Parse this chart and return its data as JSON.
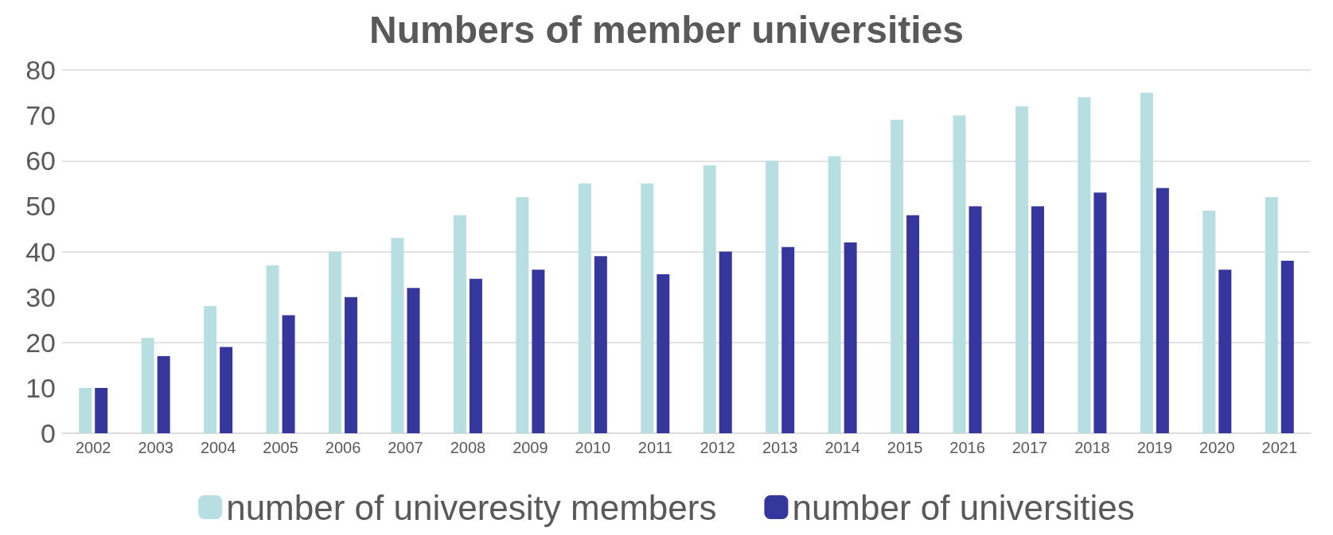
{
  "chart_data": {
    "type": "bar",
    "title": "Numbers of member universities",
    "categories": [
      "2002",
      "2003",
      "2004",
      "2005",
      "2006",
      "2007",
      "2008",
      "2009",
      "2010",
      "2011",
      "2012",
      "2013",
      "2014",
      "2015",
      "2016",
      "2017",
      "2018",
      "2019",
      "2020",
      "2021"
    ],
    "series": [
      {
        "name": "number of univeresity members",
        "color": "#b7dfe2",
        "values": [
          10,
          21,
          28,
          37,
          40,
          43,
          48,
          52,
          55,
          55,
          59,
          60,
          61,
          69,
          70,
          72,
          74,
          75,
          49,
          52
        ]
      },
      {
        "name": "number of universities",
        "color": "#36379c",
        "values": [
          10,
          17,
          19,
          26,
          30,
          32,
          34,
          36,
          39,
          35,
          40,
          41,
          42,
          48,
          50,
          50,
          53,
          54,
          36,
          38
        ]
      }
    ],
    "ylim": [
      0,
      80
    ],
    "yticks": [
      0,
      10,
      20,
      30,
      40,
      50,
      60,
      70,
      80
    ],
    "grid": "y",
    "legend": "bottom"
  }
}
